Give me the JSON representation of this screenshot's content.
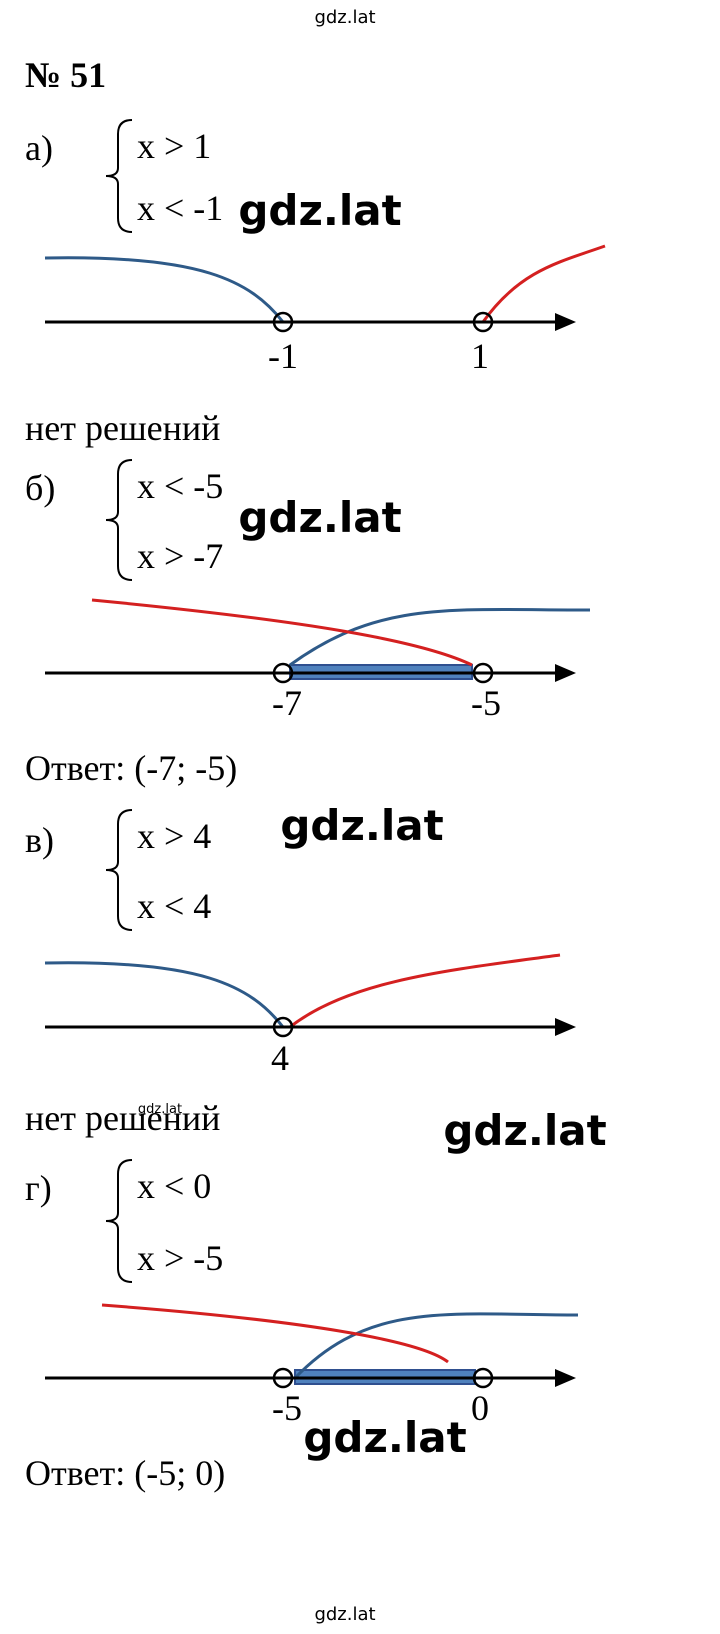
{
  "title": "№ 51",
  "parts": [
    {
      "label": "а)",
      "system": [
        "x > 1",
        "x < -1"
      ],
      "points": [
        "-1",
        "1"
      ],
      "answer": "нет решений"
    },
    {
      "label": "б)",
      "system": [
        "x < -5",
        "x > -7"
      ],
      "points": [
        "-7",
        "-5"
      ],
      "answer": "Ответ: (-7; -5)"
    },
    {
      "label": "в)",
      "system": [
        "x > 4",
        "x < 4"
      ],
      "points": [
        "4"
      ],
      "answer": "нет решений"
    },
    {
      "label": "г)",
      "system": [
        "x < 0",
        "x > -5"
      ],
      "points": [
        "-5",
        "0"
      ],
      "answer": "Ответ: (-5; 0)"
    }
  ],
  "watermarks": [
    "gdz.lat",
    "gdz.lat",
    "gdz.lat",
    "gdz.lat",
    "gdz.lat",
    "gdz.lat",
    "gdz.lat",
    "gdz.lat"
  ]
}
